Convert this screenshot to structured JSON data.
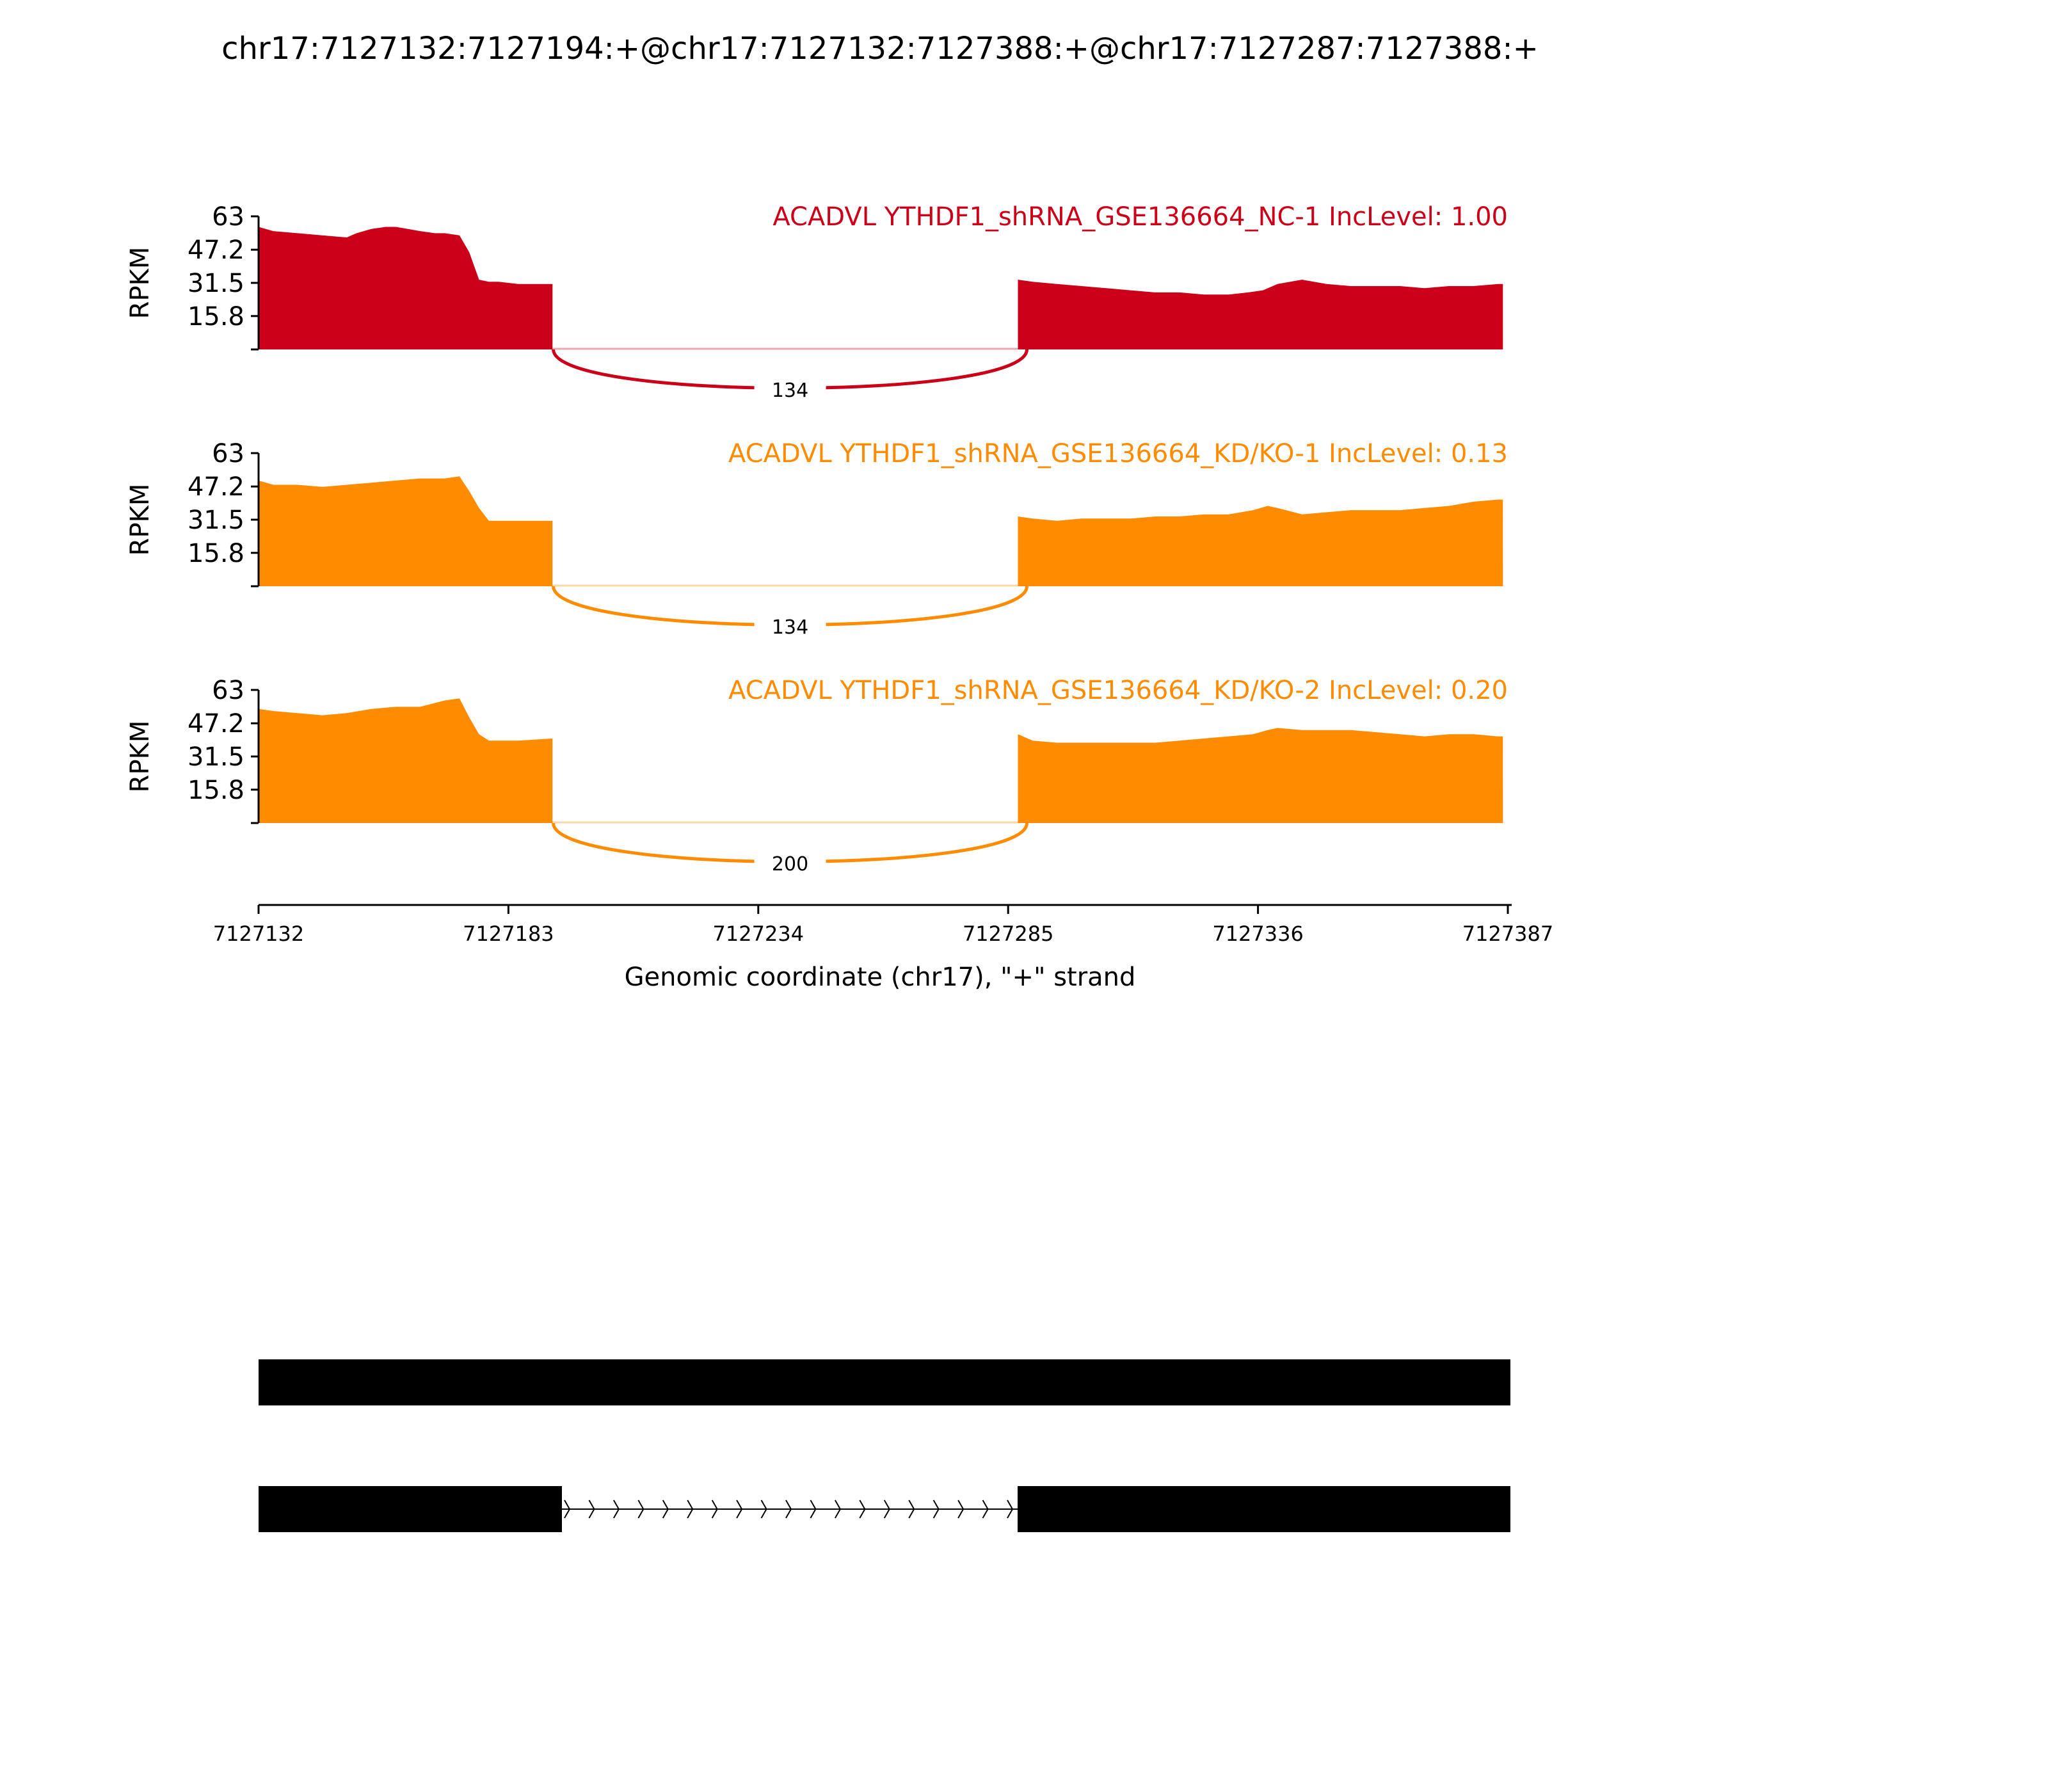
{
  "title": "chr17:7127132:7127194:+@chr17:7127132:7127388:+@chr17:7127287:7127388:+",
  "chart_data": {
    "type": "area",
    "title": "chr17:7127132:7127194:+@chr17:7127132:7127388:+@chr17:7127287:7127388:+",
    "xlabel": "Genomic coordinate (chr17), \"+\" strand",
    "ylabel": "RPKM",
    "xlim": [
      7127132,
      7127387
    ],
    "xticks": [
      7127132,
      7127183,
      7127234,
      7127285,
      7127336,
      7127387
    ],
    "ylim": [
      0,
      63
    ],
    "yticks": [
      15.8,
      31.5,
      47.2,
      63
    ],
    "ytick_labels": [
      "15.8",
      "31.5",
      "47.2",
      "63"
    ],
    "grid": false,
    "tracks": [
      {
        "label": "ACADVL YTHDF1_shRNA_GSE136664_NC-1 IncLevel: 1.00",
        "color": "#cc0018",
        "exon1": {
          "x": [
            7127132,
            7127135,
            7127140,
            7127145,
            7127150,
            7127152,
            7127155,
            7127158,
            7127160,
            7127165,
            7127168,
            7127170,
            7127173,
            7127175,
            7127177,
            7127179,
            7127181,
            7127185,
            7127192
          ],
          "y": [
            58,
            56,
            55,
            54,
            53,
            55,
            57,
            58,
            58,
            56,
            55,
            55,
            54,
            46,
            33,
            32,
            32,
            31,
            31
          ]
        },
        "exon2": {
          "x": [
            7127287,
            7127290,
            7127295,
            7127300,
            7127305,
            7127310,
            7127315,
            7127320,
            7127325,
            7127330,
            7127334,
            7127337,
            7127340,
            7127345,
            7127350,
            7127355,
            7127360,
            7127365,
            7127370,
            7127375,
            7127380,
            7127385,
            7127386
          ],
          "y": [
            33,
            32,
            31,
            30,
            29,
            28,
            27,
            27,
            26,
            26,
            27,
            28,
            31,
            33,
            31,
            30,
            30,
            30,
            29,
            30,
            30,
            31,
            31
          ]
        },
        "junction": {
          "count": "134",
          "side": "below"
        }
      },
      {
        "label": "ACADVL YTHDF1_shRNA_GSE136664_KD/KO-1 IncLevel: 0.13",
        "color": "#ff8b00",
        "exon1": {
          "x": [
            7127132,
            7127135,
            7127140,
            7127145,
            7127150,
            7127155,
            7127160,
            7127165,
            7127170,
            7127173,
            7127175,
            7127177,
            7127179,
            7127185,
            7127192
          ],
          "y": [
            50,
            48,
            48,
            47,
            48,
            49,
            50,
            51,
            51,
            52,
            45,
            37,
            31,
            31,
            31
          ]
        },
        "exon2": {
          "x": [
            7127287,
            7127290,
            7127295,
            7127300,
            7127305,
            7127310,
            7127315,
            7127320,
            7127325,
            7127330,
            7127335,
            7127338,
            7127340,
            7127345,
            7127350,
            7127355,
            7127360,
            7127365,
            7127370,
            7127375,
            7127380,
            7127385,
            7127386
          ],
          "y": [
            33,
            32,
            31,
            32,
            32,
            32,
            33,
            33,
            34,
            34,
            36,
            38,
            37,
            34,
            35,
            36,
            36,
            36,
            37,
            38,
            40,
            41,
            41
          ]
        },
        "junction": {
          "count": "134",
          "side": "below"
        }
      },
      {
        "label": "ACADVL YTHDF1_shRNA_GSE136664_KD/KO-2 IncLevel: 0.20",
        "color": "#ff8b00",
        "exon1": {
          "x": [
            7127132,
            7127135,
            7127140,
            7127145,
            7127150,
            7127155,
            7127160,
            7127165,
            7127170,
            7127173,
            7127175,
            7127177,
            7127179,
            7127185,
            7127192
          ],
          "y": [
            54,
            53,
            52,
            51,
            52,
            54,
            55,
            55,
            58,
            59,
            50,
            42,
            39,
            39,
            40
          ]
        },
        "exon2": {
          "x": [
            7127287,
            7127290,
            7127295,
            7127300,
            7127305,
            7127310,
            7127315,
            7127320,
            7127325,
            7127330,
            7127335,
            7127338,
            7127340,
            7127345,
            7127350,
            7127355,
            7127360,
            7127365,
            7127370,
            7127375,
            7127380,
            7127385,
            7127386
          ],
          "y": [
            42,
            39,
            38,
            38,
            38,
            38,
            38,
            39,
            40,
            41,
            42,
            44,
            45,
            44,
            44,
            44,
            43,
            42,
            41,
            42,
            42,
            41,
            41
          ]
        },
        "junction": {
          "count": "200",
          "side": "below"
        }
      }
    ],
    "junction_span": [
      7127194,
      7127287
    ],
    "isoforms": [
      {
        "exons": [
          [
            7127132,
            7127388
          ]
        ]
      },
      {
        "exons": [
          [
            7127132,
            7127194
          ],
          [
            7127287,
            7127388
          ]
        ],
        "intron_arrows": 19
      }
    ]
  }
}
